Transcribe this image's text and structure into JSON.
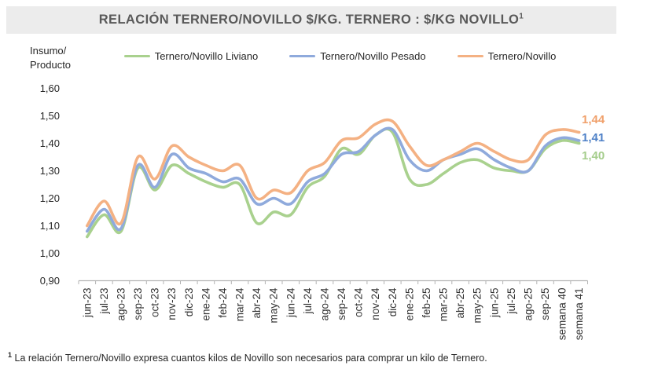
{
  "title": {
    "text": "RELACIÓN TERNERO/NOVILLO $/KG. TERNERO : $/KG NOVILLO",
    "superscript": "1"
  },
  "axis_label": {
    "line1": "Insumo/",
    "line2": "Producto"
  },
  "footnote": {
    "marker": "1",
    "text": " La relación Ternero/Novillo expresa cuantos kilos de Novillo son necesarios para comprar un kilo de Ternero."
  },
  "colors": {
    "title_bar_bg": "#ececec",
    "title_text": "#595959",
    "axis": "#b3b3b3",
    "tick_text": "#333333",
    "green": "#a9d18e",
    "blue": "#8faadc",
    "orange": "#f4b183"
  },
  "chart_data": {
    "type": "line",
    "title": "RELACIÓN TERNERO/NOVILLO $/KG. TERNERO : $/KG NOVILLO",
    "xlabel": "",
    "ylabel": "Insumo/Producto",
    "ylim": [
      0.9,
      1.6
    ],
    "grid": false,
    "legend_position": "top",
    "y_ticks": [
      "0,90",
      "1,00",
      "1,10",
      "1,20",
      "1,30",
      "1,40",
      "1,50",
      "1,60"
    ],
    "categories": [
      "jun-23",
      "jul-23",
      "ago-23",
      "sep-23",
      "oct-23",
      "nov-23",
      "dic-23",
      "ene-24",
      "feb-24",
      "mar-24",
      "abr-24",
      "may-24",
      "jun-24",
      "jul-24",
      "ago-24",
      "sep-24",
      "oct-24",
      "nov-24",
      "dic-24",
      "ene-25",
      "feb-25",
      "mar-25",
      "abr-25",
      "may-25",
      "jun-25",
      "jul-25",
      "ago-25",
      "sep-25",
      "semana 40",
      "semana 41"
    ],
    "series": [
      {
        "name": "Ternero/Novillo Liviano",
        "color": "#a9d18e",
        "end_label": "1,40",
        "end_label_color": "#a5cd8c",
        "values": [
          1.06,
          1.14,
          1.08,
          1.31,
          1.23,
          1.32,
          1.29,
          1.26,
          1.24,
          1.25,
          1.11,
          1.15,
          1.14,
          1.24,
          1.28,
          1.38,
          1.36,
          1.43,
          1.44,
          1.27,
          1.25,
          1.29,
          1.33,
          1.34,
          1.31,
          1.3,
          1.3,
          1.38,
          1.41,
          1.4
        ]
      },
      {
        "name": "Ternero/Novillo Pesado",
        "color": "#8faadc",
        "end_label": "1,41",
        "end_label_color": "#4f81c7",
        "values": [
          1.08,
          1.16,
          1.09,
          1.32,
          1.24,
          1.36,
          1.31,
          1.29,
          1.26,
          1.27,
          1.18,
          1.2,
          1.18,
          1.26,
          1.29,
          1.36,
          1.37,
          1.43,
          1.45,
          1.34,
          1.3,
          1.34,
          1.36,
          1.38,
          1.34,
          1.31,
          1.3,
          1.39,
          1.42,
          1.41
        ]
      },
      {
        "name": "Ternero/Novillo",
        "color": "#f4b183",
        "end_label": "1,44",
        "end_label_color": "#f0a06b",
        "values": [
          1.1,
          1.19,
          1.11,
          1.35,
          1.27,
          1.39,
          1.35,
          1.32,
          1.3,
          1.32,
          1.2,
          1.23,
          1.22,
          1.3,
          1.33,
          1.41,
          1.42,
          1.47,
          1.48,
          1.39,
          1.32,
          1.34,
          1.37,
          1.4,
          1.37,
          1.34,
          1.34,
          1.43,
          1.45,
          1.44
        ]
      }
    ],
    "end_labels_note": "values shown at right end of lines"
  }
}
